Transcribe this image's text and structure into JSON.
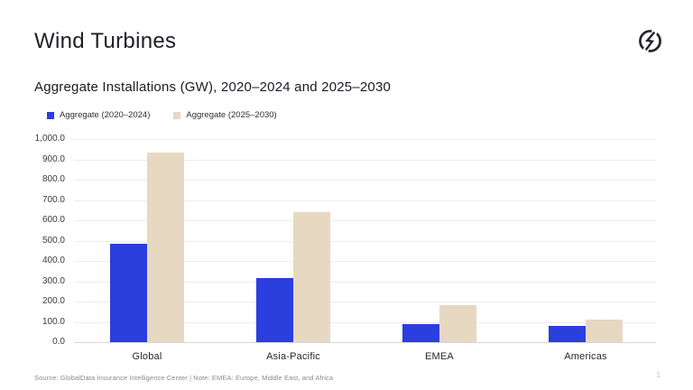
{
  "header": {
    "title": "Wind Turbines",
    "logo": "globaldata-logo"
  },
  "chart_title": "Aggregate Installations (GW), 2020–2024 and 2025–2030",
  "footer": {
    "source": "Source: GlobalData Insurance Intelligence Center | Note: EMEA: Europe, Middle East, and Africa",
    "page_number": "1"
  },
  "colors": {
    "series_2020_2024": "#2b3ede",
    "series_2025_2030": "#e7d8c2",
    "gridline": "#ececec",
    "axis_line": "#d7d7d7",
    "title_text": "#1e1e26",
    "muted_text": "#8a8a90"
  },
  "chart_data": {
    "type": "bar",
    "title": "Aggregate Installations (GW), 2020–2024 and 2025–2030",
    "categories": [
      "Global",
      "Asia-Pacific",
      "EMEA",
      "Americas"
    ],
    "series": [
      {
        "name": "Aggregate (2020–2024)",
        "color": "#2b3ede",
        "values": [
          485,
          315,
          90,
          80
        ]
      },
      {
        "name": "Aggregate (2025–2030)",
        "color": "#e7d8c2",
        "values": [
          932,
          640,
          182,
          110
        ]
      }
    ],
    "xlabel": "",
    "ylabel": "",
    "ylim": [
      0,
      1000
    ],
    "ytick_interval": 100,
    "ytick_labels": [
      "0.0",
      "100.0",
      "200.0",
      "300.0",
      "400.0",
      "500.0",
      "600.0",
      "700.0",
      "800.0",
      "900.0",
      "1,000.0"
    ],
    "grid": true,
    "legend_position": "top-left",
    "bar_orientation": "vertical"
  }
}
